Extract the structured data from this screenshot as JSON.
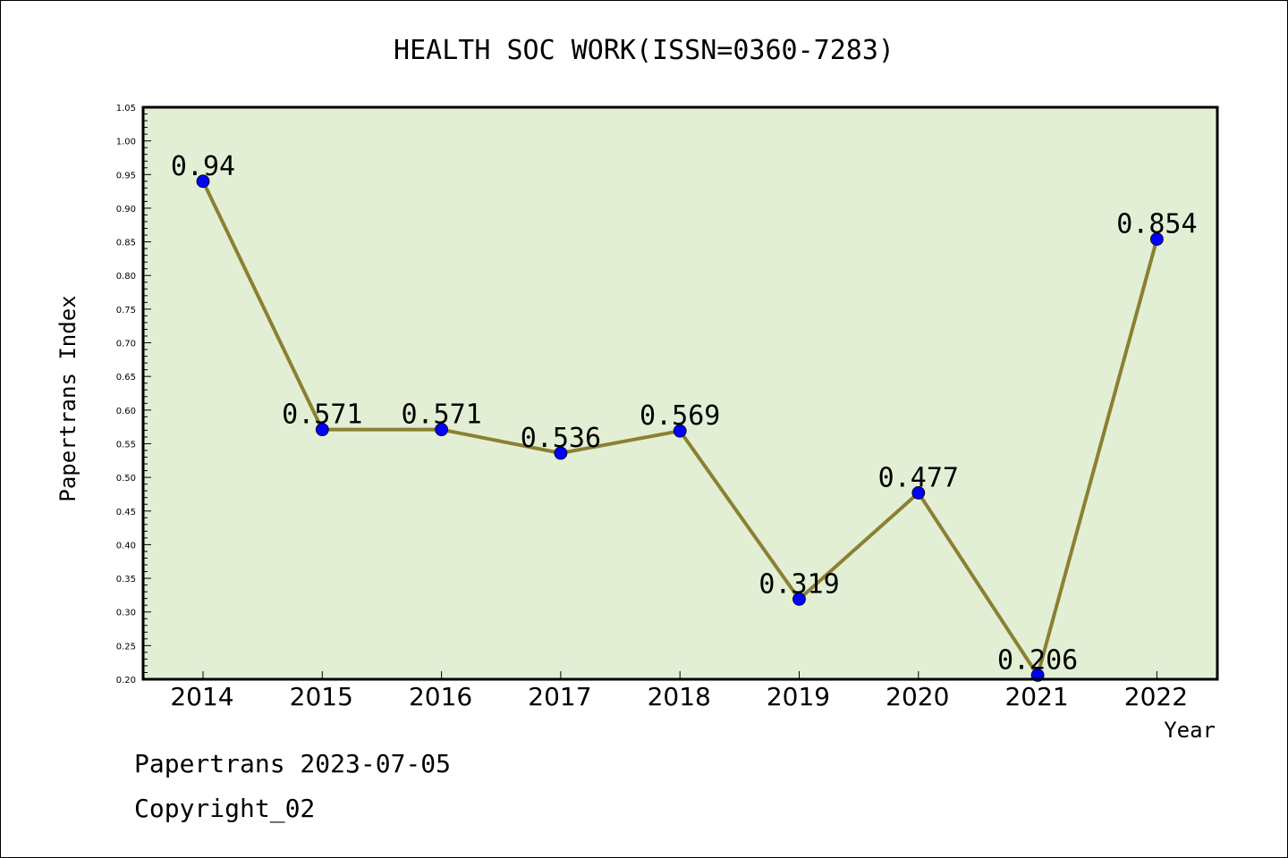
{
  "chart_data": {
    "type": "line",
    "title": "HEALTH SOC WORK(ISSN=0360-7283)",
    "xlabel": "Year",
    "ylabel": "Papertrans Index",
    "ylim": [
      0.2,
      1.05
    ],
    "ytick_step": 0.05,
    "categories": [
      "2014",
      "2015",
      "2016",
      "2017",
      "2018",
      "2019",
      "2020",
      "2021",
      "2022"
    ],
    "series": [
      {
        "values": [
          0.94,
          0.571,
          0.571,
          0.536,
          0.569,
          0.319,
          0.477,
          0.206,
          0.854
        ]
      }
    ],
    "data_labels": [
      "0.94",
      "0.571",
      "0.571",
      "0.536",
      "0.569",
      "0.319",
      "0.477",
      "0.206",
      "0.854"
    ],
    "grid": false,
    "colors": {
      "plot_background": "#e2efd5",
      "line": "#8b8032",
      "marker": "#0000ff"
    }
  },
  "footer": {
    "line1": "Papertrans 2023-07-05",
    "line2": "Copyright_02"
  }
}
